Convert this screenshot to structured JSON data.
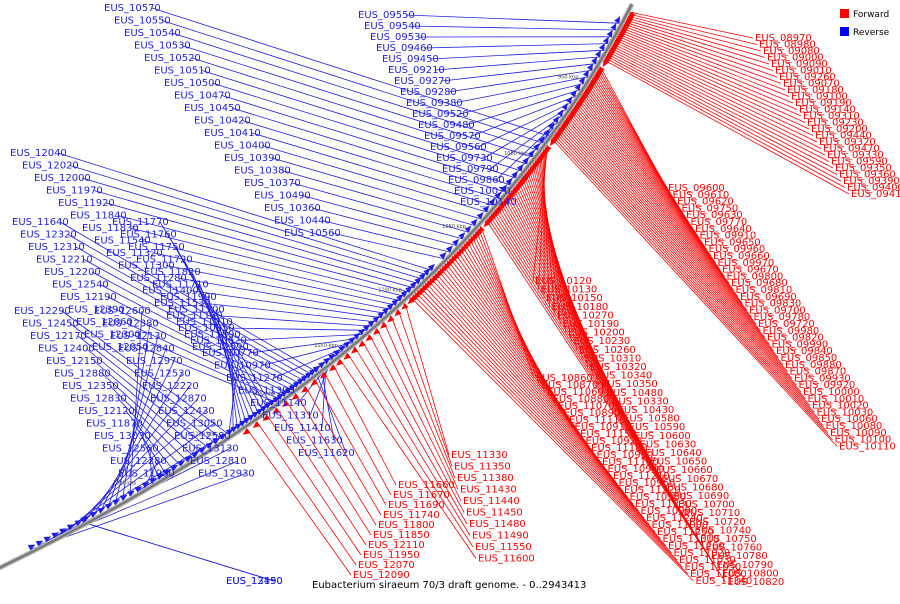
{
  "caption": "Eubacterium siraeum 70/3 draft genome. - 0..2943413",
  "legend": [
    {
      "label": "Forward",
      "color": "#ff0000"
    },
    {
      "label": "Reverse",
      "color": "#0000ff"
    }
  ],
  "colors": {
    "forward": "#ff0000",
    "reverse": "#1e1ee6",
    "backbone": "#7a7a7a"
  },
  "ticks": [
    "950 kbp",
    "1000 kbp",
    "1050 kbp",
    "1100 kbp",
    "1150 kbp",
    "1200 kbp",
    "1250 kbp",
    "1300 kbp"
  ],
  "reverse_genes": [
    "EUS_10570",
    "EUS_10550",
    "EUS_10540",
    "EUS_10530",
    "EUS_10520",
    "EUS_10510",
    "EUS_10500",
    "EUS_10470",
    "EUS_10450",
    "EUS_10420",
    "EUS_10410",
    "EUS_10400",
    "EUS_10390",
    "EUS_10380",
    "EUS_10370",
    "EUS_10490",
    "EUS_10360",
    "EUS_10440",
    "EUS_10560",
    "EUS_09550",
    "EUS_09540",
    "EUS_09530",
    "EUS_09460",
    "EUS_09450",
    "EUS_09210",
    "EUS_09270",
    "EUS_09280",
    "EUS_09380",
    "EUS_09520",
    "EUS_09480",
    "EUS_09570",
    "EUS_09560",
    "EUS_09730",
    "EUS_09790",
    "EUS_09860",
    "EUS_10070",
    "EUS_10140",
    "EUS_12040",
    "EUS_12020",
    "EUS_12000",
    "EUS_11970",
    "EUS_11920",
    "EUS_11840",
    "EUS_11830",
    "EUS_11540",
    "EUS_11320",
    "EUS_11300",
    "EUS_11280",
    "EUS_11400",
    "EUS_11530",
    "EUS_11120",
    "EUS_10950",
    "EUS_10620",
    "EUS_10770",
    "EUS_10970",
    "EUS_11270",
    "EUS_11390",
    "EUS_11140",
    "EUS_11310",
    "EUS_11410",
    "EUS_11630",
    "EUS_11620",
    "EUS_11640",
    "EUS_12320",
    "EUS_12310",
    "EUS_12210",
    "EUS_12200",
    "EUS_12540",
    "EUS_12190",
    "EUS_12390",
    "EUS_12060",
    "EUS_12300",
    "EUS_12050",
    "EUS_11770",
    "EUS_11760",
    "EUS_11750",
    "EUS_11720",
    "EUS_11820",
    "EUS_11710",
    "EUS_11990",
    "EUS_11700",
    "EUS_11910",
    "EUS_11890",
    "EUS_12590",
    "EUS_12290",
    "EUS_12450",
    "EUS_12170",
    "EUS_12400",
    "EUS_12150",
    "EUS_12880",
    "EUS_12350",
    "EUS_12830",
    "EUS_12120",
    "EUS_11870",
    "EUS_13030",
    "EUS_12560",
    "EUS_12280",
    "EUS_11980",
    "EUS_12600",
    "EUS_12380",
    "EUS_12130",
    "EUS_12840",
    "EUS_12970",
    "EUS_12530",
    "EUS_12220",
    "EUS_12870",
    "EUS_12430",
    "EUS_13050",
    "EUS_12580",
    "EUS_13130",
    "EUS_12810",
    "EUS_12930",
    "EUS_13150",
    "EUS_12490"
  ],
  "forward_genes": [
    "EUS_08970",
    "EUS_08980",
    "EUS_09080",
    "EUS_09000",
    "EUS_09090",
    "EUS_09010",
    "EUS_09260",
    "EUS_09070",
    "EUS_09180",
    "EUS_09100",
    "EUS_09190",
    "EUS_09140",
    "EUS_09310",
    "EUS_09230",
    "EUS_09200",
    "EUS_09440",
    "EUS_09320",
    "EUS_09470",
    "EUS_09330",
    "EUS_09590",
    "EUS_09350",
    "EUS_09360",
    "EUS_09390",
    "EUS_09400",
    "EUS_09410",
    "EUS_09600",
    "EUS_09610",
    "EUS_09620",
    "EUS_09750",
    "EUS_09630",
    "EUS_09770",
    "EUS_09640",
    "EUS_09910",
    "EUS_09650",
    "EUS_09960",
    "EUS_09660",
    "EUS_09970",
    "EUS_09670",
    "EUS_09800",
    "EUS_09680",
    "EUS_09810",
    "EUS_09690",
    "EUS_09830",
    "EUS_09700",
    "EUS_09780",
    "EUS_09720",
    "EUS_09980",
    "EUS_09820",
    "EUS_09990",
    "EUS_09840",
    "EUS_09850",
    "EUS_09880",
    "EUS_09870",
    "EUS_09930",
    "EUS_09920",
    "EUS_10000",
    "EUS_10010",
    "EUS_10020",
    "EUS_10030",
    "EUS_10060",
    "EUS_10080",
    "EUS_10090",
    "EUS_10100",
    "EUS_10110",
    "EUS_10120",
    "EUS_10130",
    "EUS_10150",
    "EUS_10180",
    "EUS_10270",
    "EUS_10190",
    "EUS_10200",
    "EUS_10230",
    "EUS_10260",
    "EUS_10310",
    "EUS_10320",
    "EUS_10340",
    "EUS_10350",
    "EUS_10480",
    "EUS_10330",
    "EUS_10430",
    "EUS_10580",
    "EUS_10590",
    "EUS_10600",
    "EUS_10630",
    "EUS_10640",
    "EUS_10650",
    "EUS_10660",
    "EUS_10670",
    "EUS_10680",
    "EUS_10690",
    "EUS_10700",
    "EUS_10710",
    "EUS_10720",
    "EUS_10740",
    "EUS_10750",
    "EUS_10760",
    "EUS_10780",
    "EUS_10790",
    "EUS_10800",
    "EUS_10820",
    "EUS_10860",
    "EUS_10870",
    "EUS_11060",
    "EUS_10880",
    "EUS_11070",
    "EUS_10890",
    "EUS_11110",
    "EUS_10910",
    "EUS_11150",
    "EUS_10920",
    "EUS_11180",
    "EUS_10930",
    "EUS_11190",
    "EUS_10940",
    "EUS_11210",
    "EUS_10960",
    "EUS_11220",
    "EUS_10980",
    "EUS_11230",
    "EUS_10990",
    "EUS_11240",
    "EUS_11000",
    "EUS_11250",
    "EUS_11010",
    "EUS_11260",
    "EUS_11020",
    "EUS_11030",
    "EUS_11050",
    "EUS_11080",
    "EUS_11340",
    "EUS_11330",
    "EUS_11350",
    "EUS_11380",
    "EUS_11430",
    "EUS_11440",
    "EUS_11450",
    "EUS_11480",
    "EUS_11490",
    "EUS_11550",
    "EUS_11600",
    "EUS_11660",
    "EUS_11670",
    "EUS_11690",
    "EUS_11740",
    "EUS_11800",
    "EUS_11850",
    "EUS_12110",
    "EUS_11950",
    "EUS_12070",
    "EUS_12090"
  ]
}
